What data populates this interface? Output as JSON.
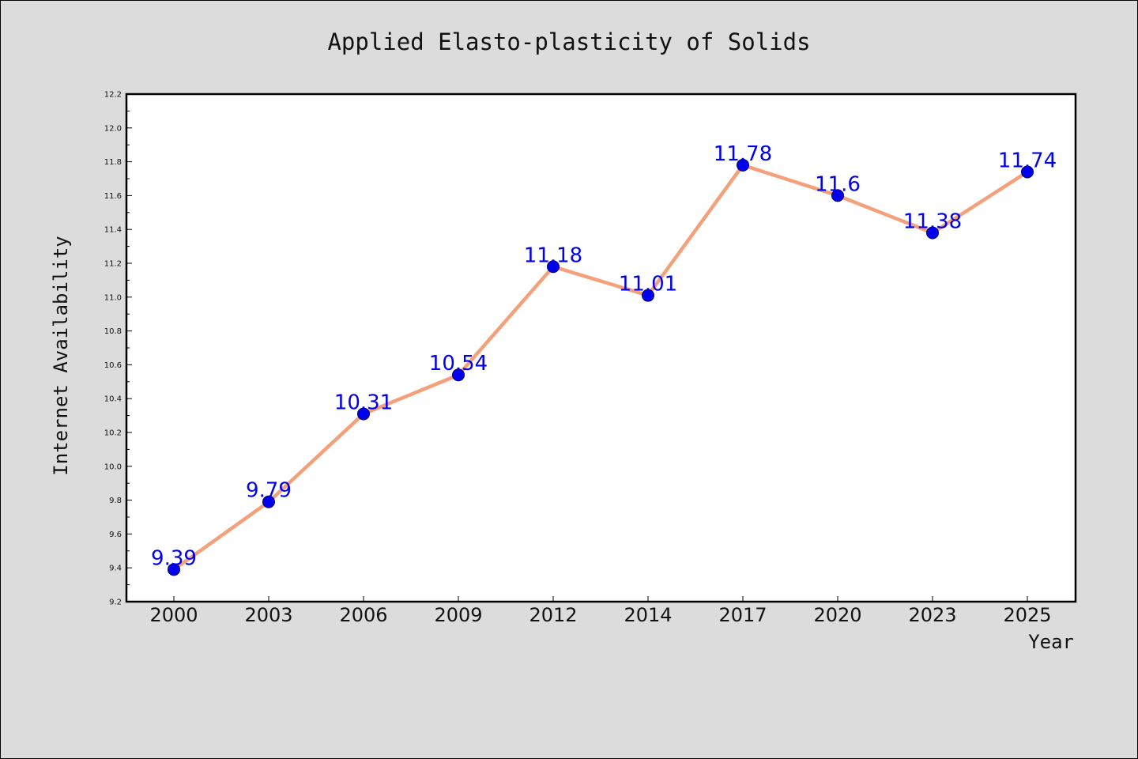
{
  "chart_data": {
    "type": "line",
    "title": "Applied Elasto-plasticity of Solids",
    "xlabel": "Year",
    "ylabel": "Internet Availability",
    "categories": [
      "2000",
      "2003",
      "2006",
      "2009",
      "2012",
      "2014",
      "2017",
      "2020",
      "2023",
      "2025"
    ],
    "series": [
      {
        "values": [
          9.39,
          9.79,
          10.31,
          10.54,
          11.18,
          11.01,
          11.78,
          11.6,
          11.38,
          11.74
        ],
        "line_color": "#f4a07a",
        "marker_color": "#0000ee",
        "marker_edge_color": "#000066"
      }
    ],
    "data_labels": [
      "9.39",
      "9.79",
      "10.31",
      "10.54",
      "11.18",
      "11.01",
      "11.78",
      "11.6",
      "11.38",
      "11.74"
    ],
    "data_label_color": "#0000ee",
    "ylim": [
      9.2,
      12.2
    ],
    "yticks": [
      "9.2",
      "9.4",
      "9.6",
      "9.8",
      "10.0",
      "10.2",
      "10.4",
      "10.6",
      "10.8",
      "11.0",
      "11.2",
      "11.4",
      "11.6",
      "11.8",
      "12.0",
      "12.2"
    ],
    "grid": false,
    "legend": "none"
  }
}
